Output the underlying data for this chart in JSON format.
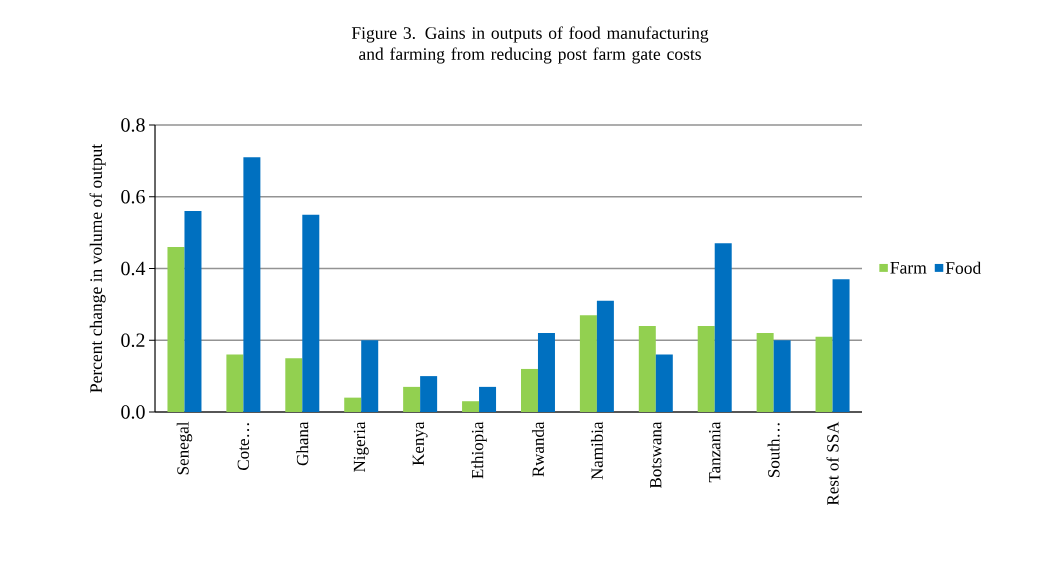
{
  "chart_data": {
    "type": "bar",
    "title": "Figure 3. Gains in outputs of food manufacturing and farming from reducing post farm gate costs",
    "ylabel": "Percent change in volume of output",
    "categories": [
      "Senegal",
      "Cote…",
      "Ghana",
      "Nigeria",
      "Kenya",
      "Ethiopia",
      "Rwanda",
      "Namibia",
      "Botswana",
      "Tanzania",
      "South…",
      "Rest of SSA"
    ],
    "series": [
      {
        "name": "Farm",
        "color": "#92d050",
        "values": [
          0.46,
          0.16,
          0.15,
          0.04,
          0.07,
          0.03,
          0.12,
          0.27,
          0.24,
          0.24,
          0.22,
          0.21
        ]
      },
      {
        "name": "Food",
        "color": "#0070c0",
        "values": [
          0.56,
          0.71,
          0.55,
          0.2,
          0.1,
          0.07,
          0.22,
          0.31,
          0.16,
          0.47,
          0.2,
          0.37
        ]
      }
    ],
    "ylim": [
      0,
      0.8
    ],
    "yticks": [
      {
        "value": 0,
        "label": "0.0"
      },
      {
        "value": 0.2,
        "label": "0.2"
      },
      {
        "value": 0.4,
        "label": "0.4"
      },
      {
        "value": 0.6,
        "label": "0.6"
      },
      {
        "value": 0.8,
        "label": "0.8"
      }
    ],
    "grid": "y",
    "legend": "right"
  }
}
